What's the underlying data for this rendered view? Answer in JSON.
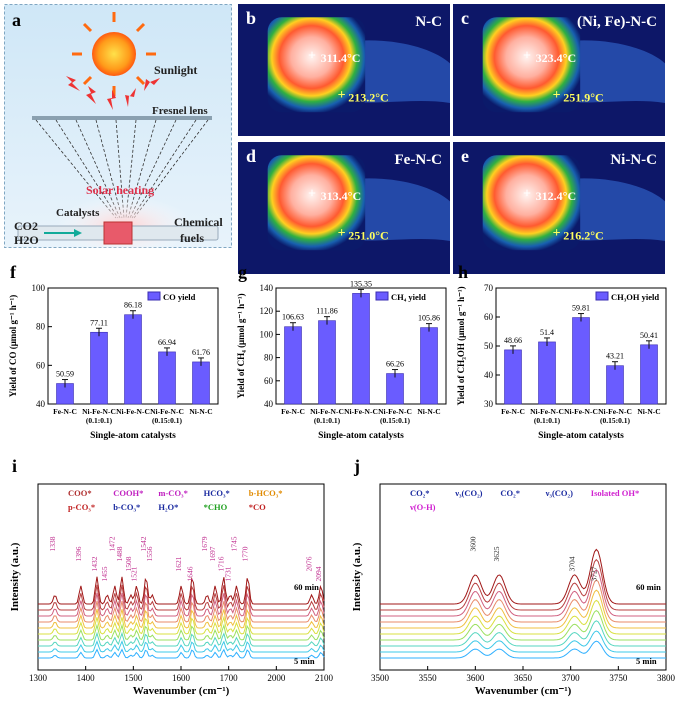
{
  "panel_a": {
    "label": "a",
    "sunlight": "Sunlight",
    "lens": "Fresnel lens",
    "heating": "Solar heating",
    "catalysts": "Catalysts",
    "co2": "CO2",
    "h2o": "H2O",
    "fuels_1": "Chemical",
    "fuels_2": "fuels"
  },
  "thermal_panels": [
    {
      "label": "b",
      "title": "N-C",
      "t_center": "311.4°C",
      "t_edge": "213.2°C"
    },
    {
      "label": "c",
      "title": "(Ni, Fe)-N-C",
      "t_center": "323.4°C",
      "t_edge": "251.9°C"
    },
    {
      "label": "d",
      "title": "Fe-N-C",
      "t_center": "313.4°C",
      "t_edge": "251.0°C"
    },
    {
      "label": "e",
      "title": "Ni-N-C",
      "t_center": "312.4°C",
      "t_edge": "216.2°C"
    }
  ],
  "chart_data": [
    {
      "type": "bar",
      "label": "f",
      "legend": "CO yield",
      "categories": [
        "Fe-N-C",
        "Ni-Fe-N-C (0.1:0.1)",
        "Ni-Fe-N-C",
        "Ni-Fe-N-C (0.15:0.1)",
        "Ni-N-C"
      ],
      "values": [
        50.59,
        77.11,
        86.18,
        66.94,
        61.76
      ],
      "value_labels": [
        "50.59",
        "77.11",
        "86.18",
        "66.94",
        "61.76"
      ],
      "ylabel": "Yield of CO (μmol g⁻¹ h⁻¹)",
      "xlabel": "Single-atom catalysts",
      "ylim": [
        40,
        100
      ],
      "yticks": [
        "40",
        "60",
        "80",
        "100"
      ]
    },
    {
      "type": "bar",
      "label": "g",
      "legend": "CH₄ yield",
      "categories": [
        "Fe-N-C",
        "Ni-Fe-N-C (0.1:0.1)",
        "Ni-Fe-N-C",
        "Ni-Fe-N-C (0.15:0.1)",
        "Ni-N-C"
      ],
      "values": [
        106.63,
        111.86,
        135.35,
        66.26,
        105.86
      ],
      "value_labels": [
        "106.63",
        "111.86",
        "135.35",
        "66.26",
        "105.86"
      ],
      "ylabel": "Yield of CH₄ (μmol g⁻¹ h⁻¹)",
      "xlabel": "Single-atom catalysts",
      "ylim": [
        40,
        140
      ],
      "yticks": [
        "40",
        "60",
        "80",
        "100",
        "120",
        "140"
      ]
    },
    {
      "type": "bar",
      "label": "h",
      "legend": "CH₃OH yield",
      "categories": [
        "Fe-N-C",
        "Ni-Fe-N-C (0.1:0.1)",
        "Ni-Fe-N-C",
        "Ni-Fe-N-C (0.15:0.1)",
        "Ni-N-C"
      ],
      "values": [
        48.66,
        51.4,
        59.81,
        43.21,
        50.41
      ],
      "value_labels": [
        "48.66",
        "51.4",
        "59.81",
        "43.21",
        "50.41"
      ],
      "ylabel": "Yield of CH₃OH (μmol g⁻¹ h⁻¹)",
      "xlabel": "Single-atom catalysts",
      "ylim": [
        30,
        70
      ],
      "yticks": [
        "30",
        "40",
        "50",
        "60",
        "70"
      ]
    },
    {
      "type": "line",
      "label": "i",
      "xlabel": "Wavenumber (cm⁻¹)",
      "ylabel": "Intensity (a.u.)",
      "xticks": [
        "1300",
        "1400",
        "1500",
        "1600",
        "1700",
        "2000",
        "2100"
      ],
      "group_labels": [
        "COO*",
        "COOH*",
        "m-CO₃*",
        "HCO₃*",
        "b-HCO₃*",
        "p-CO₃*",
        "b-CO₃*",
        "H₂O*",
        "*CHO",
        "*CO"
      ],
      "peaks": [
        "1338",
        "1396",
        "1432",
        "1455",
        "1472",
        "1488",
        "1508",
        "1521",
        "1542",
        "1556",
        "1621",
        "1646",
        "1679",
        "1697",
        "1716",
        "1731",
        "1745",
        "1770",
        "2076",
        "2094"
      ],
      "time_top": "60 min",
      "time_bottom": "5 min",
      "n_series": 10
    },
    {
      "type": "line",
      "label": "j",
      "xlabel": "Wavenumber (cm⁻¹)",
      "ylabel": "Intensity (a.u.)",
      "xticks": [
        "3500",
        "3550",
        "3600",
        "3650",
        "3700",
        "3750",
        "3800"
      ],
      "xlim": [
        3500,
        3800
      ],
      "group_labels": [
        "CO₂*",
        "ν₃(CO₂)",
        "CO₂*",
        "ν₃(CO₂)",
        "Isolated OH*",
        "ν(O-H)"
      ],
      "peaks": [
        "3600",
        "3625",
        "3704",
        "3727"
      ],
      "time_top": "60 min",
      "time_bottom": "5 min",
      "n_series": 10
    }
  ]
}
